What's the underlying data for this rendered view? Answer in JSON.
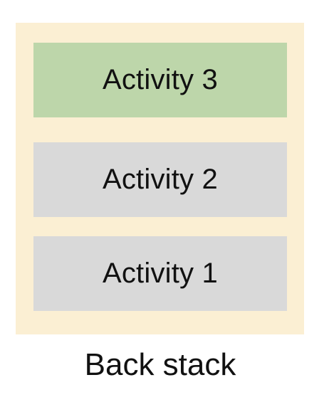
{
  "diagram": {
    "caption": "Back stack",
    "activities": [
      {
        "label": "Activity 3",
        "state": "top",
        "color": "#bdd6aa"
      },
      {
        "label": "Activity 2",
        "state": "middle",
        "color": "#d9d9d9"
      },
      {
        "label": "Activity 1",
        "state": "bottom",
        "color": "#d9d9d9"
      }
    ],
    "container_color": "#fbefd3"
  }
}
